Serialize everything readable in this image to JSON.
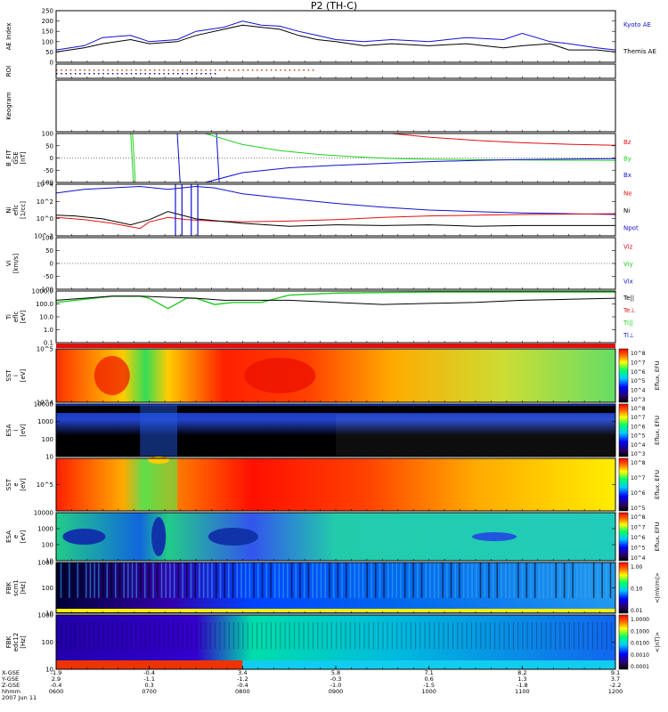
{
  "title": "P2 (TH-C)",
  "colors": {
    "black": "#000000",
    "blue": "#1010d0",
    "red": "#e01010",
    "green": "#20d020",
    "roi_red": "#cc3300",
    "roi_blue": "#000099"
  },
  "chart_data": [
    {
      "id": "ae",
      "type": "line",
      "ylabel": "AE Index",
      "ylim": [
        0,
        250
      ],
      "yticks": [
        "250",
        "200",
        "150",
        "100",
        "50",
        "0"
      ],
      "legend": [
        "Kyoto AE",
        "Themis AE"
      ],
      "series": [
        {
          "name": "Kyoto AE",
          "color": "#1010d0",
          "x": [
            6.0,
            6.3,
            6.5,
            6.8,
            7.0,
            7.3,
            7.5,
            7.8,
            8.0,
            8.2,
            8.4,
            8.6,
            8.8,
            9.0,
            9.3,
            9.6,
            10.0,
            10.4,
            10.8,
            11.0,
            11.3,
            11.5,
            11.8,
            12.0
          ],
          "y": [
            60,
            80,
            120,
            130,
            100,
            110,
            150,
            170,
            200,
            180,
            175,
            150,
            130,
            110,
            100,
            110,
            100,
            120,
            110,
            140,
            100,
            90,
            70,
            60
          ]
        },
        {
          "name": "Themis AE",
          "color": "#000000",
          "x": [
            6.0,
            6.3,
            6.5,
            6.8,
            7.0,
            7.3,
            7.5,
            7.8,
            8.0,
            8.2,
            8.4,
            8.6,
            8.8,
            9.0,
            9.3,
            9.6,
            10.0,
            10.4,
            10.8,
            11.0,
            11.3,
            11.5,
            11.8,
            12.0
          ],
          "y": [
            50,
            70,
            90,
            110,
            90,
            100,
            130,
            160,
            180,
            170,
            160,
            130,
            110,
            100,
            80,
            90,
            80,
            90,
            70,
            80,
            90,
            60,
            60,
            50
          ]
        }
      ]
    },
    {
      "id": "roi",
      "type": "table",
      "ylabel": "ROI"
    },
    {
      "id": "keogram",
      "type": "table",
      "ylabel": "Keogram"
    },
    {
      "id": "bfit",
      "type": "line",
      "ylabel": [
        "B_FIT",
        "GSE",
        "[nT]"
      ],
      "ylim": [
        -100,
        100
      ],
      "yticks": [
        "100",
        "50",
        "0",
        "-50",
        "-100"
      ],
      "legend": [
        "Bz",
        "By",
        "Bx"
      ],
      "series": [
        {
          "name": "Bz",
          "color": "#e01010",
          "x": [
            9.6,
            10.0,
            10.5,
            11.0,
            11.5,
            12.0
          ],
          "y": [
            100,
            85,
            72,
            62,
            56,
            52
          ]
        },
        {
          "name": "By",
          "color": "#20d020",
          "x": [
            7.6,
            8.0,
            8.4,
            8.8,
            9.2,
            9.6,
            10.0,
            11.0,
            12.0
          ],
          "y": [
            100,
            55,
            30,
            15,
            5,
            -2,
            -5,
            -8,
            -10
          ]
        },
        {
          "name": "Bx",
          "color": "#1010d0",
          "x": [
            7.6,
            8.0,
            8.5,
            9.0,
            9.5,
            10.0,
            10.5,
            11.0,
            12.0
          ],
          "y": [
            -100,
            -60,
            -40,
            -30,
            -22,
            -15,
            -10,
            -6,
            -3
          ]
        }
      ]
    },
    {
      "id": "ni",
      "type": "line",
      "ylabel": [
        "Ni",
        "eflc",
        "[1/cc]"
      ],
      "yticks": [
        "10^4",
        "10^2",
        "10^0",
        "10^-2"
      ],
      "legend": [
        "Ne",
        "Ni",
        "Npot"
      ]
    },
    {
      "id": "vi",
      "type": "line",
      "ylabel": [
        "Vi",
        "[km/s]"
      ],
      "ylim": [
        -100,
        100
      ],
      "yticks": [
        "100",
        "50",
        "0",
        "-50",
        "-100"
      ],
      "legend": [
        "Viz",
        "Viy",
        "Vix"
      ]
    },
    {
      "id": "ti",
      "type": "line",
      "ylabel": [
        "Ti",
        "eflc",
        "[eV]"
      ],
      "yticks": [
        "1000.0",
        "100.0",
        "10.0",
        "1.0",
        "0.1"
      ],
      "legend": [
        "Te||",
        "Te⊥",
        "Ti||",
        "Ti⊥"
      ]
    },
    {
      "id": "sst_i",
      "type": "heatmap",
      "ylabel": [
        "SST",
        "i",
        "[eV]"
      ],
      "yticks": [
        "10^5",
        "10^4"
      ],
      "cbar": [
        "10^8",
        "10^7",
        "10^6",
        "10^5",
        "10^4",
        "10^3"
      ],
      "cbar_label": "Eflux, EFU"
    },
    {
      "id": "esa_i",
      "type": "heatmap",
      "ylabel": [
        "ESA",
        "i",
        "[eV]"
      ],
      "yticks": [
        "10000",
        "1000",
        "100",
        "10"
      ],
      "cbar": [
        "10^8",
        "10^7",
        "10^6",
        "10^5",
        "10^4",
        "10^3"
      ],
      "cbar_label": "Eflux, EFU"
    },
    {
      "id": "sst_e",
      "type": "heatmap",
      "ylabel": [
        "SST",
        "e",
        "[eV]"
      ],
      "yticks": [
        "10^5"
      ],
      "cbar": [
        "10^8",
        "10^7",
        "10^6",
        "10^5"
      ],
      "cbar_label": "Eflux, EFU"
    },
    {
      "id": "esa_e",
      "type": "heatmap",
      "ylabel": [
        "ESA",
        "e",
        "[eV]"
      ],
      "yticks": [
        "10000",
        "1000",
        "100",
        "10"
      ],
      "cbar": [
        "10^8",
        "10^7",
        "10^6",
        "10^5",
        "10^4"
      ],
      "cbar_label": "Eflux, EFU"
    },
    {
      "id": "fbk_b",
      "type": "heatmap",
      "ylabel": [
        "FBK",
        "scm1",
        "[Hz]"
      ],
      "yticks": [
        "1000",
        "100",
        "10"
      ],
      "cbar": [
        "1.00",
        "0.10",
        "0.01"
      ],
      "cbar_label": "<|mV/m|>"
    },
    {
      "id": "fbk_e",
      "type": "heatmap",
      "ylabel": [
        "FBK",
        "edc12",
        "[Hz]"
      ],
      "yticks": [
        "1000",
        "100",
        "10"
      ],
      "cbar": [
        "1.0000",
        "0.1000",
        "0.0100",
        "0.0010",
        "0.0001"
      ],
      "cbar_label": "<|nT|>"
    }
  ],
  "xaxis": {
    "row_labels": [
      "X-GSE",
      "Y-GSE",
      "Z-GSE",
      "hhmm",
      "2007 Jun 11"
    ],
    "ticks": [
      {
        "x": "-1.9",
        "y": "2.9",
        "z": "-0.4",
        "t": "0600"
      },
      {
        "x": "-0.4",
        "y": "-1.1",
        "z": "0.3",
        "t": "0700"
      },
      {
        "x": "3.4",
        "y": "-1.2",
        "z": "-0.4",
        "t": "0800"
      },
      {
        "x": "5.8",
        "y": "-0.3",
        "z": "-1.0",
        "t": "0900"
      },
      {
        "x": "7.1",
        "y": "0.6",
        "z": "-1.5",
        "t": "1000"
      },
      {
        "x": "8.2",
        "y": "1.3",
        "z": "-1.8",
        "t": "1100"
      },
      {
        "x": "9.1",
        "y": "3.7",
        "z": "-2.2",
        "t": "1200"
      }
    ]
  }
}
